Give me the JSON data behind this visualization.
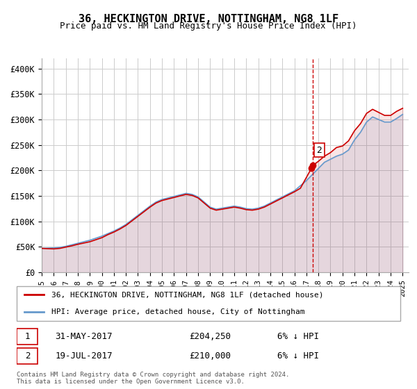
{
  "title": "36, HECKINGTON DRIVE, NOTTINGHAM, NG8 1LF",
  "subtitle": "Price paid vs. HM Land Registry's House Price Index (HPI)",
  "ylabel": "",
  "ylim": [
    0,
    420000
  ],
  "yticks": [
    0,
    50000,
    100000,
    150000,
    200000,
    250000,
    300000,
    350000,
    400000
  ],
  "ytick_labels": [
    "£0",
    "£50K",
    "£100K",
    "£150K",
    "£200K",
    "£250K",
    "£300K",
    "£350K",
    "£400K"
  ],
  "hpi_color": "#6699cc",
  "price_color": "#cc0000",
  "annotation_color": "#cc0000",
  "grid_color": "#cccccc",
  "background_color": "#ffffff",
  "legend_label_price": "36, HECKINGTON DRIVE, NOTTINGHAM, NG8 1LF (detached house)",
  "legend_label_hpi": "HPI: Average price, detached house, City of Nottingham",
  "transaction1_label": "1",
  "transaction1_date": "31-MAY-2017",
  "transaction1_price": "£204,250",
  "transaction1_hpi": "6% ↓ HPI",
  "transaction2_label": "2",
  "transaction2_date": "19-JUL-2017",
  "transaction2_price": "£210,000",
  "transaction2_hpi": "6% ↓ HPI",
  "footer": "Contains HM Land Registry data © Crown copyright and database right 2024.\nThis data is licensed under the Open Government Licence v3.0.",
  "hpi_x": [
    1995,
    1995.5,
    1996,
    1996.5,
    1997,
    1997.5,
    1998,
    1998.5,
    1999,
    1999.5,
    2000,
    2000.5,
    2001,
    2001.5,
    2002,
    2002.5,
    2003,
    2003.5,
    2004,
    2004.5,
    2005,
    2005.5,
    2006,
    2006.5,
    2007,
    2007.5,
    2008,
    2008.5,
    2009,
    2009.5,
    2010,
    2010.5,
    2011,
    2011.5,
    2012,
    2012.5,
    2013,
    2013.5,
    2014,
    2014.5,
    2015,
    2015.5,
    2016,
    2016.5,
    2017,
    2017.5,
    2018,
    2018.5,
    2019,
    2019.5,
    2020,
    2020.5,
    2021,
    2021.5,
    2022,
    2022.5,
    2023,
    2023.5,
    2024,
    2024.5,
    2025
  ],
  "hpi_y": [
    47000,
    47500,
    48000,
    49000,
    51000,
    54000,
    57000,
    60000,
    63000,
    67000,
    71000,
    76000,
    81000,
    87000,
    94000,
    103000,
    112000,
    121000,
    130000,
    138000,
    143000,
    146000,
    149000,
    152000,
    155000,
    153000,
    148000,
    138000,
    128000,
    124000,
    126000,
    128000,
    130000,
    128000,
    125000,
    124000,
    126000,
    130000,
    136000,
    142000,
    148000,
    154000,
    160000,
    170000,
    180000,
    192000,
    204000,
    216000,
    222000,
    228000,
    232000,
    240000,
    260000,
    275000,
    295000,
    305000,
    300000,
    295000,
    295000,
    302000,
    310000
  ],
  "price_x": [
    1995,
    1995.4,
    1996,
    1996.5,
    1997,
    1997.5,
    1998,
    1998.5,
    1999,
    1999.5,
    2000,
    2000.5,
    2001,
    2001.5,
    2002,
    2002.5,
    2003,
    2003.5,
    2004,
    2004.5,
    2005,
    2005.5,
    2006,
    2006.5,
    2007,
    2007.5,
    2008,
    2008.5,
    2009,
    2009.5,
    2010,
    2010.5,
    2011,
    2011.5,
    2012,
    2012.5,
    2013,
    2013.5,
    2014,
    2014.5,
    2015,
    2015.5,
    2016,
    2016.5,
    2017.42,
    2017.55,
    2018,
    2018.5,
    2019,
    2019.5,
    2020,
    2020.5,
    2021,
    2021.5,
    2022,
    2022.5,
    2023,
    2023.5,
    2024,
    2024.5,
    2025
  ],
  "price_y": [
    47000,
    46500,
    46000,
    47000,
    49500,
    52000,
    55000,
    57500,
    60000,
    64000,
    68000,
    74000,
    79000,
    85000,
    92000,
    101000,
    110000,
    119000,
    128000,
    136000,
    141000,
    144000,
    147000,
    150000,
    153000,
    151000,
    146000,
    136000,
    126000,
    122000,
    124000,
    126000,
    128000,
    126000,
    123000,
    122000,
    124000,
    128000,
    134000,
    140000,
    146000,
    152000,
    158000,
    165000,
    204250,
    210000,
    218000,
    228000,
    235000,
    245000,
    248000,
    258000,
    278000,
    292000,
    312000,
    320000,
    314000,
    308000,
    308000,
    316000,
    322000
  ],
  "transaction1_x": 2017.42,
  "transaction1_y": 204250,
  "transaction2_x": 2017.55,
  "transaction2_y": 210000,
  "vline_x": 2017.5,
  "xlim": [
    1995,
    2025.5
  ],
  "xtick_years": [
    1995,
    1996,
    1997,
    1998,
    1999,
    2000,
    2001,
    2002,
    2003,
    2004,
    2005,
    2006,
    2007,
    2008,
    2009,
    2010,
    2011,
    2012,
    2013,
    2014,
    2015,
    2016,
    2017,
    2018,
    2019,
    2020,
    2021,
    2022,
    2023,
    2024,
    2025
  ]
}
